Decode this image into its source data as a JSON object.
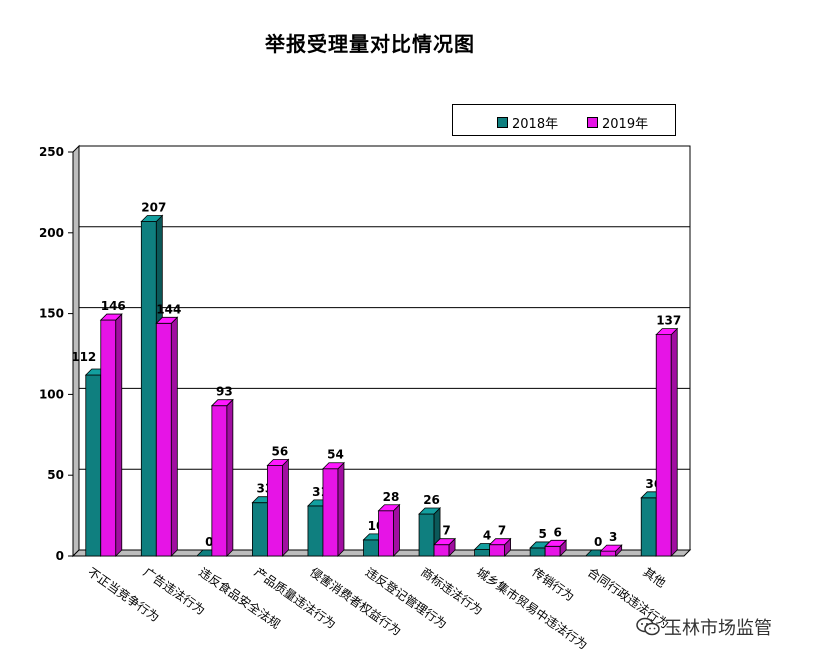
{
  "chart_data": {
    "type": "bar",
    "title": "举报受理量对比情况图",
    "xlabel": "",
    "ylabel": "",
    "ylim": [
      0,
      250
    ],
    "yticks": [
      0,
      50,
      100,
      150,
      200,
      250
    ],
    "grid": true,
    "legend_position": "top-right",
    "categories": [
      "不正当竞争行为",
      "广告违法行为",
      "违反食品安全法规",
      "产品质量违法行为",
      "侵害消费者权益行为",
      "违反登记管理行为",
      "商标违法行为",
      "城乡集市贸易中违法行为",
      "传销行为",
      "合同行政违法行为",
      "其他"
    ],
    "series": [
      {
        "name": "2018年",
        "color": "#0f7f7f",
        "values": [
          112,
          207,
          0,
          33,
          31,
          10,
          26,
          4,
          5,
          0,
          36
        ]
      },
      {
        "name": "2019年",
        "color": "#e614e6",
        "values": [
          146,
          144,
          93,
          56,
          54,
          28,
          7,
          7,
          6,
          3,
          137
        ]
      }
    ]
  },
  "watermark": {
    "text": "玉林市场监管",
    "icon": "wechat-icon"
  }
}
